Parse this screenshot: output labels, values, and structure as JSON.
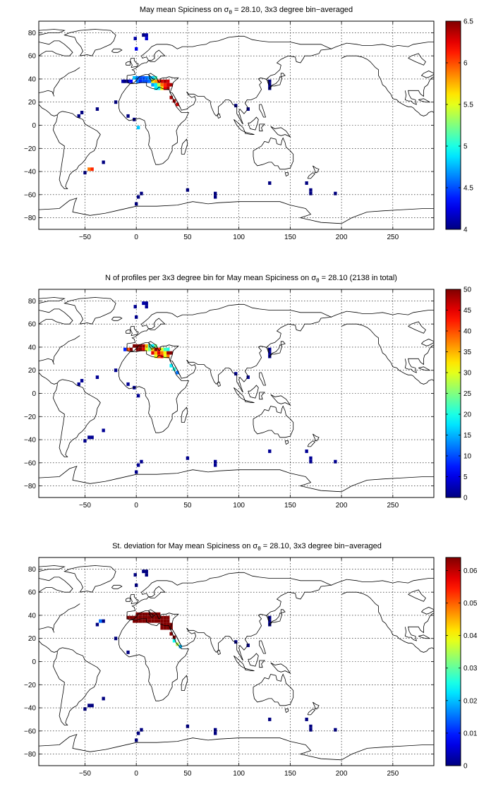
{
  "figure": {
    "panels": [
      {
        "title_prefix": "May mean Spiciness on ",
        "title_sym": "σ",
        "title_sub": "θ",
        "title_suffix": " = 28.10, 3x3 degree bin−averaged"
      },
      {
        "title_prefix": "N of profiles per 3x3 degree bin for May mean Spiciness on ",
        "title_sym": "σ",
        "title_sub": "θ",
        "title_suffix": " = 28.10 (2138 in total)"
      },
      {
        "title_prefix": "St. deviation for May mean Spiciness on ",
        "title_sym": "σ",
        "title_sub": "θ",
        "title_suffix": " = 28.10, 3x3 degree bin−averaged"
      }
    ]
  },
  "chart_data": [
    {
      "type": "heatmap",
      "title": "May mean Spiciness on σθ = 28.10, 3x3 degree bin−averaged",
      "xlim": [
        -95,
        290
      ],
      "ylim": [
        -90,
        90
      ],
      "xticks": [
        -50,
        0,
        50,
        100,
        150,
        200,
        250
      ],
      "yticks": [
        -80,
        -60,
        -40,
        -20,
        0,
        20,
        40,
        60,
        80
      ],
      "grid": true,
      "colormap": "jet",
      "colorbar": {
        "min": 4,
        "max": 6.5,
        "ticks": [
          "4",
          "4.5",
          "5",
          "5.5",
          "6",
          "6.5"
        ]
      },
      "cells": [
        [
          7,
          78,
          4.0
        ],
        [
          10,
          78,
          4.1
        ],
        [
          10,
          75,
          4.2
        ],
        [
          -1,
          75,
          4.1
        ],
        [
          0,
          66,
          4.3
        ],
        [
          -13,
          38,
          4.1
        ],
        [
          -11,
          38,
          4.0
        ],
        [
          -8,
          38,
          4.1
        ],
        [
          -5,
          38,
          4.3
        ],
        [
          -2,
          41,
          4.8
        ],
        [
          1,
          41,
          4.6
        ],
        [
          4,
          41,
          4.5
        ],
        [
          7,
          41,
          4.5
        ],
        [
          10,
          41,
          4.6
        ],
        [
          13,
          41,
          4.7
        ],
        [
          16,
          41,
          4.8
        ],
        [
          19,
          41,
          5.1
        ],
        [
          1,
          38,
          4.6
        ],
        [
          4,
          38,
          4.4
        ],
        [
          7,
          38,
          4.5
        ],
        [
          10,
          38,
          4.5
        ],
        [
          13,
          38,
          4.6
        ],
        [
          16,
          38,
          5.6
        ],
        [
          19,
          38,
          5.8
        ],
        [
          22,
          38,
          6.1
        ],
        [
          25,
          38,
          6.3
        ],
        [
          28,
          38,
          6.4
        ],
        [
          31,
          38,
          6.3
        ],
        [
          16,
          35,
          4.7
        ],
        [
          19,
          35,
          4.9
        ],
        [
          22,
          35,
          5.4
        ],
        [
          25,
          35,
          5.9
        ],
        [
          28,
          35,
          6.1
        ],
        [
          31,
          35,
          6.3
        ],
        [
          34,
          35,
          6.4
        ],
        [
          19,
          32,
          4.9
        ],
        [
          22,
          32,
          4.9
        ],
        [
          25,
          32,
          5.6
        ],
        [
          28,
          32,
          6.2
        ],
        [
          31,
          32,
          6.4
        ],
        [
          34,
          24,
          6.4
        ],
        [
          37,
          21,
          6.4
        ],
        [
          40,
          18,
          6.3
        ],
        [
          -38,
          14,
          4.0
        ],
        [
          -53,
          11,
          4.0
        ],
        [
          -56,
          8,
          4.0
        ],
        [
          -2,
          5,
          4.0
        ],
        [
          2,
          -2,
          4.8
        ],
        [
          -20,
          20,
          4.0
        ],
        [
          -8,
          8,
          4.0
        ],
        [
          -32,
          -32,
          4.0
        ],
        [
          -50,
          -41,
          4.0
        ],
        [
          -46,
          -38,
          5.9
        ],
        [
          -43,
          -38,
          6.1
        ],
        [
          5,
          -59,
          4.0
        ],
        [
          2,
          -62,
          4.0
        ],
        [
          0,
          -68,
          4.0
        ],
        [
          50,
          -56,
          4.0
        ],
        [
          77,
          -59,
          4.0
        ],
        [
          77,
          -62,
          4.0
        ],
        [
          130,
          -50,
          4.0
        ],
        [
          166,
          -50,
          4.0
        ],
        [
          170,
          -56,
          4.0
        ],
        [
          170,
          -59,
          4.0
        ],
        [
          194,
          -59,
          4.0
        ],
        [
          97,
          17,
          4.0
        ],
        [
          109,
          14,
          4.0
        ],
        [
          130,
          38,
          4.0
        ],
        [
          130,
          35,
          4.0
        ],
        [
          130,
          32,
          4.0
        ]
      ]
    },
    {
      "type": "heatmap",
      "title": "N of profiles per 3x3 degree bin for May mean Spiciness on σθ = 28.10 (2138 in total)",
      "xlim": [
        -95,
        290
      ],
      "ylim": [
        -90,
        90
      ],
      "xticks": [
        -50,
        0,
        50,
        100,
        150,
        200,
        250
      ],
      "yticks": [
        -80,
        -60,
        -40,
        -20,
        0,
        20,
        40,
        60,
        80
      ],
      "grid": true,
      "colormap": "jet",
      "colorbar": {
        "min": 0,
        "max": 50,
        "ticks": [
          "0",
          "5",
          "10",
          "15",
          "20",
          "25",
          "30",
          "35",
          "40",
          "45",
          "50"
        ]
      },
      "cells": [
        [
          7,
          78,
          2
        ],
        [
          10,
          78,
          1
        ],
        [
          10,
          75,
          1
        ],
        [
          -1,
          75,
          1
        ],
        [
          0,
          66,
          1
        ],
        [
          -11,
          38,
          8
        ],
        [
          -8,
          38,
          40
        ],
        [
          -5,
          38,
          50
        ],
        [
          -2,
          41,
          50
        ],
        [
          1,
          41,
          50
        ],
        [
          4,
          41,
          50
        ],
        [
          7,
          41,
          48
        ],
        [
          10,
          41,
          35
        ],
        [
          13,
          41,
          22
        ],
        [
          16,
          41,
          18
        ],
        [
          19,
          41,
          25
        ],
        [
          1,
          38,
          50
        ],
        [
          4,
          38,
          50
        ],
        [
          7,
          38,
          45
        ],
        [
          10,
          38,
          30
        ],
        [
          13,
          38,
          24
        ],
        [
          16,
          38,
          34
        ],
        [
          19,
          38,
          50
        ],
        [
          22,
          38,
          42
        ],
        [
          25,
          38,
          30
        ],
        [
          28,
          38,
          22
        ],
        [
          31,
          38,
          20
        ],
        [
          16,
          35,
          45
        ],
        [
          19,
          35,
          35
        ],
        [
          22,
          35,
          45
        ],
        [
          25,
          35,
          38
        ],
        [
          28,
          35,
          32
        ],
        [
          31,
          35,
          48
        ],
        [
          34,
          35,
          50
        ],
        [
          19,
          32,
          30
        ],
        [
          22,
          32,
          40
        ],
        [
          25,
          32,
          44
        ],
        [
          28,
          32,
          30
        ],
        [
          31,
          32,
          38
        ],
        [
          34,
          24,
          18
        ],
        [
          37,
          21,
          20
        ],
        [
          40,
          18,
          12
        ],
        [
          -38,
          14,
          1
        ],
        [
          -53,
          11,
          1
        ],
        [
          -56,
          8,
          1
        ],
        [
          -2,
          5,
          1
        ],
        [
          2,
          -2,
          1
        ],
        [
          -20,
          20,
          1
        ],
        [
          -8,
          8,
          1
        ],
        [
          -32,
          -32,
          1
        ],
        [
          -50,
          -41,
          1
        ],
        [
          -46,
          -38,
          1
        ],
        [
          -43,
          -38,
          1
        ],
        [
          5,
          -59,
          1
        ],
        [
          2,
          -62,
          1
        ],
        [
          0,
          -68,
          1
        ],
        [
          50,
          -56,
          1
        ],
        [
          77,
          -59,
          1
        ],
        [
          77,
          -62,
          1
        ],
        [
          130,
          -50,
          1
        ],
        [
          166,
          -50,
          1
        ],
        [
          170,
          -56,
          1
        ],
        [
          170,
          -59,
          1
        ],
        [
          194,
          -59,
          1
        ],
        [
          97,
          17,
          1
        ],
        [
          109,
          14,
          1
        ],
        [
          130,
          38,
          1
        ],
        [
          130,
          35,
          1
        ],
        [
          130,
          32,
          1
        ]
      ]
    },
    {
      "type": "heatmap",
      "title": "St. deviation for May mean Spiciness on σθ = 28.10, 3x3 degree bin−averaged",
      "xlim": [
        -95,
        290
      ],
      "ylim": [
        -90,
        90
      ],
      "xticks": [
        -50,
        0,
        50,
        100,
        150,
        200,
        250
      ],
      "yticks": [
        -80,
        -60,
        -40,
        -20,
        0,
        20,
        40,
        60,
        80
      ],
      "grid": true,
      "colormap": "jet",
      "colorbar": {
        "min": 0,
        "max": 0.064,
        "ticks": [
          "0",
          "0.01",
          "0.02",
          "0.03",
          "0.04",
          "0.05",
          "0.06"
        ]
      },
      "cells": [
        [
          7,
          78,
          0.0
        ],
        [
          10,
          78,
          0.0
        ],
        [
          10,
          75,
          0.0
        ],
        [
          -1,
          75,
          0.0
        ],
        [
          0,
          66,
          0.0
        ],
        [
          -38,
          32,
          0.0
        ],
        [
          -35,
          35,
          0.015
        ],
        [
          -32,
          35,
          0.0
        ],
        [
          -8,
          38,
          0.064
        ],
        [
          -5,
          38,
          0.064
        ],
        [
          -2,
          38,
          0.064
        ],
        [
          1,
          41,
          0.064
        ],
        [
          4,
          41,
          0.064
        ],
        [
          7,
          41,
          0.064
        ],
        [
          10,
          41,
          0.064
        ],
        [
          13,
          41,
          0.064
        ],
        [
          16,
          41,
          0.064
        ],
        [
          19,
          41,
          0.064
        ],
        [
          22,
          41,
          0.064
        ],
        [
          -2,
          35,
          0.064
        ],
        [
          1,
          38,
          0.064
        ],
        [
          4,
          38,
          0.064
        ],
        [
          7,
          38,
          0.064
        ],
        [
          10,
          38,
          0.064
        ],
        [
          13,
          38,
          0.064
        ],
        [
          16,
          38,
          0.064
        ],
        [
          19,
          38,
          0.064
        ],
        [
          22,
          38,
          0.064
        ],
        [
          25,
          38,
          0.064
        ],
        [
          28,
          38,
          0.064
        ],
        [
          31,
          38,
          0.064
        ],
        [
          1,
          35,
          0.064
        ],
        [
          4,
          35,
          0.064
        ],
        [
          7,
          35,
          0.064
        ],
        [
          10,
          35,
          0.064
        ],
        [
          13,
          35,
          0.064
        ],
        [
          16,
          35,
          0.064
        ],
        [
          19,
          35,
          0.064
        ],
        [
          22,
          35,
          0.064
        ],
        [
          25,
          35,
          0.064
        ],
        [
          28,
          35,
          0.064
        ],
        [
          31,
          35,
          0.064
        ],
        [
          25,
          32,
          0.064
        ],
        [
          28,
          32,
          0.064
        ],
        [
          31,
          32,
          0.064
        ],
        [
          34,
          32,
          0.064
        ],
        [
          25,
          29,
          0.064
        ],
        [
          28,
          29,
          0.064
        ],
        [
          31,
          29,
          0.064
        ],
        [
          34,
          29,
          0.064
        ],
        [
          34,
          24,
          0.064
        ],
        [
          37,
          21,
          0.064
        ],
        [
          37,
          18,
          0.025
        ],
        [
          40,
          15,
          0.035
        ],
        [
          43,
          13,
          0.02
        ],
        [
          -20,
          20,
          0.0
        ],
        [
          -8,
          8,
          0.0
        ],
        [
          -32,
          -32,
          0.0
        ],
        [
          -50,
          -41,
          0.0
        ],
        [
          -46,
          -38,
          0.0
        ],
        [
          -43,
          -38,
          0.0
        ],
        [
          5,
          -59,
          0.0
        ],
        [
          2,
          -62,
          0.0
        ],
        [
          0,
          -68,
          0.0
        ],
        [
          50,
          -56,
          0.0
        ],
        [
          77,
          -59,
          0.0
        ],
        [
          77,
          -62,
          0.0
        ],
        [
          130,
          -50,
          0.0
        ],
        [
          166,
          -50,
          0.0
        ],
        [
          170,
          -56,
          0.0
        ],
        [
          170,
          -59,
          0.0
        ],
        [
          194,
          -59,
          0.0
        ],
        [
          97,
          17,
          0.0
        ],
        [
          109,
          14,
          0.0
        ],
        [
          130,
          38,
          0.0
        ],
        [
          130,
          35,
          0.0
        ],
        [
          130,
          32,
          0.0
        ]
      ]
    }
  ]
}
